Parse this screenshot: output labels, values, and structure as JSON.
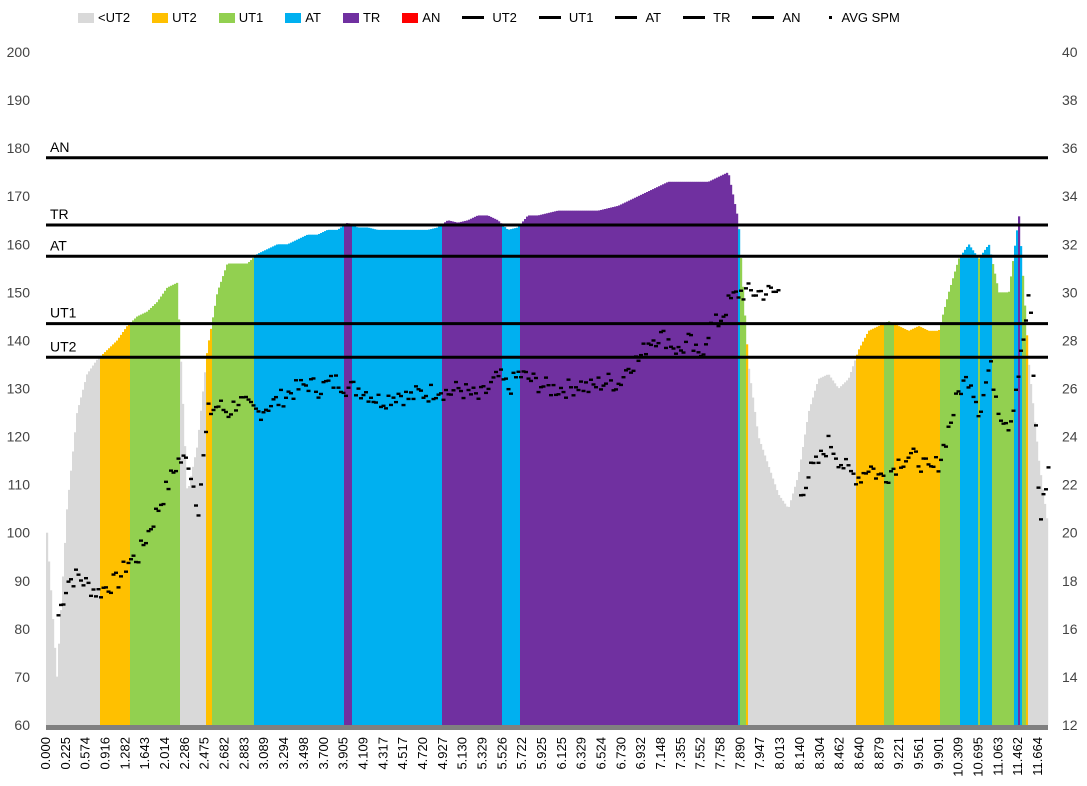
{
  "chart_data": {
    "type": "area",
    "title": "",
    "x_tick_labels": [
      "0.000",
      "0.225",
      "0.574",
      "0.916",
      "1.282",
      "1.643",
      "2.014",
      "2.286",
      "2.475",
      "2.682",
      "2.883",
      "3.089",
      "3.294",
      "3.498",
      "3.700",
      "3.905",
      "4.109",
      "4.317",
      "4.517",
      "4.720",
      "4.927",
      "5.130",
      "5.329",
      "5.526",
      "5.722",
      "5.925",
      "6.125",
      "6.329",
      "6.524",
      "6.730",
      "6.932",
      "7.148",
      "7.355",
      "7.552",
      "7.758",
      "7.890",
      "7.947",
      "8.013",
      "8.140",
      "8.304",
      "8.462",
      "8.640",
      "8.879",
      "9.221",
      "9.561",
      "9.901",
      "10.309",
      "10.695",
      "11.063",
      "11.462",
      "11.664"
    ],
    "y_left": {
      "min": 60,
      "max": 200,
      "step": 10,
      "ticks": [
        "60",
        "70",
        "80",
        "90",
        "100",
        "110",
        "120",
        "130",
        "140",
        "150",
        "160",
        "170",
        "180",
        "190",
        "200"
      ]
    },
    "y_right": {
      "min": 12,
      "max": 40,
      "step": 2,
      "ticks": [
        "12",
        "14",
        "16",
        "18",
        "20",
        "22",
        "24",
        "26",
        "28",
        "30",
        "32",
        "34",
        "36",
        "38",
        "40"
      ]
    },
    "zones": [
      {
        "name": "<UT2",
        "color": "#D9D9D9"
      },
      {
        "name": "UT2",
        "color": "#FFC000"
      },
      {
        "name": "UT1",
        "color": "#92D050"
      },
      {
        "name": "AT",
        "color": "#00B0F0"
      },
      {
        "name": "TR",
        "color": "#7030A0"
      },
      {
        "name": "AN",
        "color": "#FF0000"
      }
    ],
    "thresholds": [
      {
        "name": "UT2",
        "value": 136.5
      },
      {
        "name": "UT1",
        "value": 143.5
      },
      {
        "name": "AT",
        "value": 157.5
      },
      {
        "name": "TR",
        "value": 164
      },
      {
        "name": "AN",
        "value": 178
      }
    ],
    "hr_series": [
      100,
      70,
      105,
      125,
      133,
      136,
      138,
      140,
      143,
      145,
      146,
      148,
      151,
      152,
      108,
      118,
      138,
      150,
      156,
      156,
      156,
      158,
      159,
      160,
      160,
      161,
      162,
      162,
      163,
      163,
      164.5,
      163.5,
      163.5,
      163,
      163,
      163,
      163,
      163,
      163,
      163.5,
      165,
      164.5,
      165,
      166,
      166,
      165,
      163,
      163.5,
      166,
      166,
      166.5,
      167,
      167,
      167,
      167,
      167,
      167.5,
      168,
      169,
      170,
      171,
      172,
      173,
      173,
      173,
      173,
      173,
      174,
      175,
      165,
      135,
      120,
      114,
      108,
      105,
      112,
      125,
      132,
      133,
      130,
      132,
      138,
      142,
      143,
      144,
      143,
      142,
      143,
      142,
      142,
      150,
      157,
      160,
      157,
      160,
      150,
      150,
      166,
      135,
      115,
      100
    ],
    "spm_series": [
      null,
      16.5,
      18,
      18.2,
      17.8,
      17.5,
      17.8,
      18,
      18.8,
      19,
      20,
      21,
      22,
      23,
      23,
      21,
      25,
      25.3,
      25,
      25.5,
      25.2,
      25,
      25.3,
      25.5,
      25.8,
      26,
      26.2,
      26,
      26.2,
      26.3,
      26,
      26,
      25.8,
      25.5,
      25.6,
      25.8,
      25.6,
      25.8,
      25.8,
      26,
      25.8,
      26,
      25.8,
      25.6,
      26,
      26.5,
      26,
      26.6,
      26.4,
      26.2,
      26,
      26,
      26,
      26.2,
      26,
      26.2,
      26.3,
      26.2,
      27,
      27.2,
      28,
      28.2,
      28,
      27.5,
      28,
      27.2,
      28.5,
      28.8,
      29.6,
      30,
      30,
      30,
      30,
      30,
      null,
      21.5,
      22.5,
      23,
      23.8,
      23,
      22.5,
      22.3,
      22.8,
      22.3,
      22.5,
      23,
      23.2,
      23,
      22.5,
      23,
      24.5,
      26,
      26.5,
      25,
      27,
      25,
      24.5,
      27,
      30,
      20.5,
      23
    ],
    "legend": {
      "placement": "top",
      "items": [
        {
          "label": "<UT2",
          "kind": "area",
          "color": "#D9D9D9"
        },
        {
          "label": "UT2",
          "kind": "area",
          "color": "#FFC000"
        },
        {
          "label": "UT1",
          "kind": "area",
          "color": "#92D050"
        },
        {
          "label": "AT",
          "kind": "area",
          "color": "#00B0F0"
        },
        {
          "label": "TR",
          "kind": "area",
          "color": "#7030A0"
        },
        {
          "label": "AN",
          "kind": "area",
          "color": "#FF0000"
        },
        {
          "label": "UT2",
          "kind": "line",
          "color": "#000000"
        },
        {
          "label": "UT1",
          "kind": "line",
          "color": "#000000"
        },
        {
          "label": "AT",
          "kind": "line",
          "color": "#000000"
        },
        {
          "label": "TR",
          "kind": "line",
          "color": "#000000"
        },
        {
          "label": "AN",
          "kind": "line",
          "color": "#000000"
        },
        {
          "label": "AVG SPM",
          "kind": "marker",
          "color": "#000000"
        }
      ]
    }
  }
}
